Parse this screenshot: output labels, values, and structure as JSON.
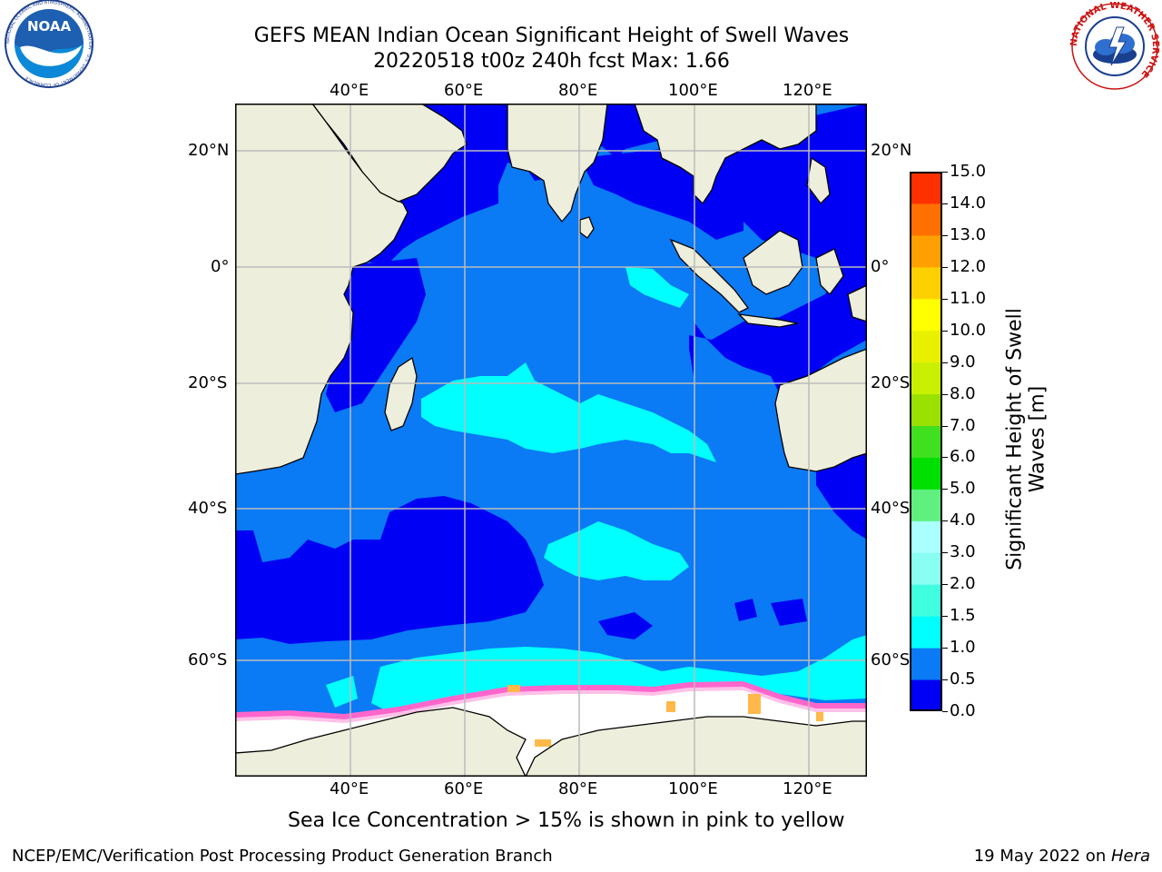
{
  "title": {
    "line1": "GEFS MEAN Indian Ocean Significant Height of Swell Waves",
    "line2": "20220518 t00z 240h fcst   Max: 1.66"
  },
  "map": {
    "lon_labels_top": [
      "40°E",
      "60°E",
      "80°E",
      "100°E",
      "120°E"
    ],
    "lon_labels_bottom": [
      "40°E",
      "60°E",
      "80°E",
      "100°E",
      "120°E"
    ],
    "lat_labels_left": [
      "20°N",
      "0°",
      "20°S",
      "40°S",
      "60°S"
    ],
    "lat_labels_right": [
      "20°N",
      "0°",
      "20°S",
      "40°S",
      "60°S"
    ],
    "lon_range": [
      20,
      130
    ],
    "lat_range": [
      -70,
      27
    ]
  },
  "colorbar": {
    "label_line1": "Significant Height of Swell",
    "label_line2": "Waves [m]",
    "ticks": [
      "0.0",
      "0.5",
      "1.0",
      "1.5",
      "2.0",
      "3.0",
      "4.0",
      "5.0",
      "6.0",
      "7.0",
      "8.0",
      "9.0",
      "10.0",
      "11.0",
      "12.0",
      "13.0",
      "14.0",
      "15.0"
    ],
    "colors": [
      "#0000f5",
      "#0a7af5",
      "#00ffff",
      "#40ffe0",
      "#88fff0",
      "#aaffff",
      "#60f080",
      "#00e000",
      "#40e020",
      "#9ae000",
      "#c8f000",
      "#e8f000",
      "#ffff00",
      "#ffd000",
      "#ffa000",
      "#ff7000",
      "#ff3000",
      "#ff0000"
    ]
  },
  "chart_data": {
    "type": "heatmap",
    "title": "GEFS MEAN Indian Ocean Significant Height of Swell Waves",
    "subtitle": "20220518 t00z 240h fcst   Max: 1.66",
    "variable": "Significant Height of Swell Waves [m]",
    "max": 1.66,
    "colorbar_range": [
      0.0,
      15.0
    ],
    "grid": true
  },
  "note": "Sea Ice Concentration > 15% is shown in pink to yellow",
  "footer": {
    "left": "NCEP/EMC/Verification Post Processing Product Generation Branch",
    "date": "19 May 2022 on ",
    "host": "Hera"
  },
  "logos": {
    "noaa_text": "NOAA",
    "noaa_ring": "NATIONAL OCEANIC AND ATMOSPHERIC ADMINISTRATION · U.S. DEPARTMENT OF COMMERCE",
    "nws_ring": "NATIONAL WEATHER SERVICE"
  },
  "colors": {
    "land": "#eeeedc",
    "ocean_low": "#0000f5",
    "ocean_mid": "#0a7af5",
    "ocean_high": "#00ffff",
    "ice": "#ffffff",
    "ice_edge": "#ff66cc",
    "grid": "#bbbbbb"
  }
}
